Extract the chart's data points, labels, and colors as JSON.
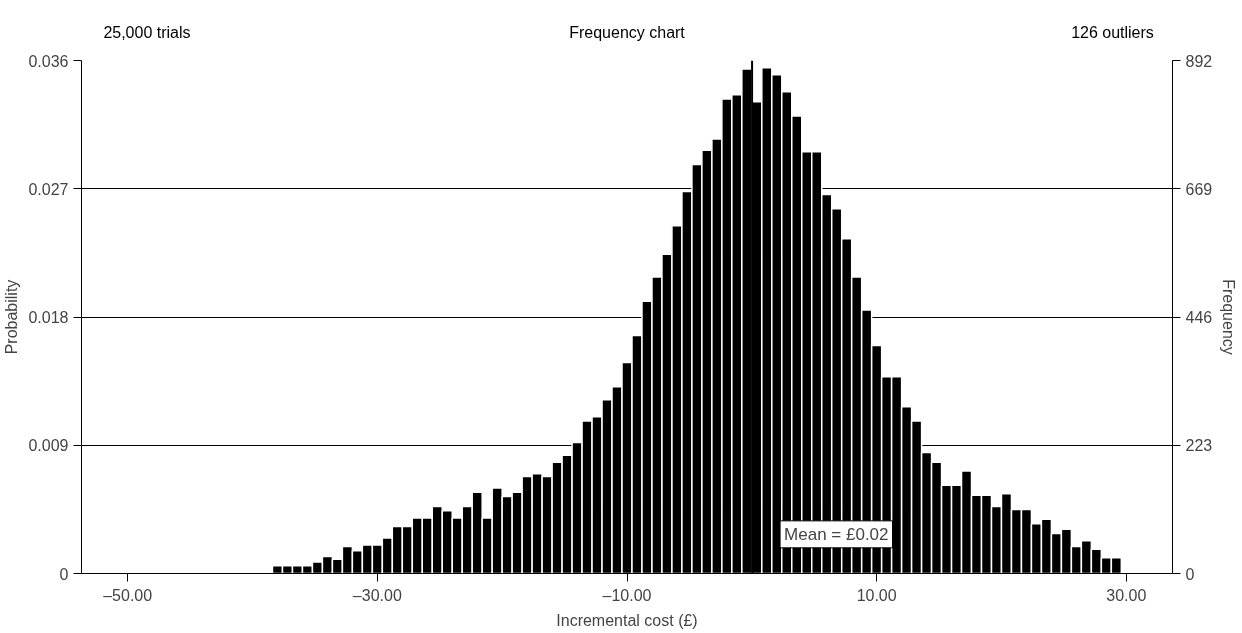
{
  "chart_data": {
    "type": "histogram",
    "title": "Frequency chart",
    "xlabel": "Incremental cost (£)",
    "ylabel": "Probability",
    "y2label": "Frequency",
    "annotations": [
      "25,000 trials",
      "126 outliers"
    ],
    "bins": [
      -38.4,
      -37.6,
      -36.8,
      -36,
      -35.2,
      -34.4,
      -33.6,
      -32.8,
      -32,
      -31.2,
      -30.4,
      -29.6,
      -28.8,
      -28,
      -27.2,
      -26.4,
      -25.6,
      -24.8,
      -24,
      -23.2,
      -22.4,
      -21.6,
      -20.8,
      -20,
      -19.2,
      -18.4,
      -17.6,
      -16.8,
      -16,
      -15.2,
      -14.4,
      -13.6,
      -12.8,
      -12,
      -11.2,
      -10.4,
      -9.6,
      -8.8,
      -8,
      -7.2,
      -6.4,
      -5.6,
      -4.8,
      -4,
      -3.2,
      -2.4,
      -1.6,
      -0.8,
      0,
      0.8,
      1.6,
      2.4,
      3.2,
      4,
      4.8,
      5.6,
      6.4,
      7.2,
      8,
      8.8,
      9.6,
      10.4,
      11.2,
      12,
      12.8,
      13.6,
      14.4,
      15.2,
      16,
      16.8,
      17.6,
      18.4,
      19.2,
      20,
      20.8,
      21.6,
      22.4,
      23.2,
      24,
      24.8,
      25.6,
      26.4,
      27.2,
      28,
      28.8,
      29.6
    ],
    "values": [
      0.00055,
      0.00055,
      0.00055,
      0.00055,
      0.0008,
      0.0012,
      0.001,
      0.0019,
      0.0016,
      0.002,
      0.002,
      0.0025,
      0.0033,
      0.0033,
      0.0039,
      0.0039,
      0.0047,
      0.0044,
      0.0039,
      0.0047,
      0.0057,
      0.0039,
      0.006,
      0.0054,
      0.0057,
      0.0068,
      0.007,
      0.0068,
      0.0078,
      0.0083,
      0.0092,
      0.0107,
      0.011,
      0.0122,
      0.0131,
      0.0148,
      0.0167,
      0.0191,
      0.0208,
      0.0224,
      0.0244,
      0.0268,
      0.0287,
      0.0297,
      0.0305,
      0.0333,
      0.0336,
      0.0354,
      0.0331,
      0.0355,
      0.035,
      0.0338,
      0.0321,
      0.0296,
      0.0296,
      0.0266,
      0.0256,
      0.0235,
      0.0208,
      0.0185,
      0.016,
      0.0138,
      0.0138,
      0.0117,
      0.0107,
      0.0085,
      0.0078,
      0.0062,
      0.0062,
      0.0072,
      0.0055,
      0.0055,
      0.0047,
      0.0056,
      0.0045,
      0.0045,
      0.0035,
      0.0038,
      0.0028,
      0.0031,
      0.0019,
      0.0023,
      0.0017,
      0.0011,
      0.0011
    ],
    "color": "#000000",
    "xlim": [
      -53.7,
      33.7
    ],
    "xticks": [
      {
        "value": -50,
        "label": "–50.00"
      },
      {
        "value": -30,
        "label": "–30.00"
      },
      {
        "value": -10,
        "label": "–10.00"
      },
      {
        "value": 10,
        "label": "10.00"
      },
      {
        "value": 30,
        "label": "30.00"
      }
    ],
    "ylim": [
      0,
      0.036
    ],
    "yticks": [
      0,
      0.009,
      0.018,
      0.027,
      0.036
    ],
    "y2lim": [
      0,
      892
    ],
    "y2ticks": [
      0,
      223,
      446,
      669,
      892
    ],
    "grid": "y",
    "ref_lines": [
      {
        "axis": "x",
        "value": 0.02,
        "label": "Mean = £0.02",
        "color": "#000000"
      }
    ]
  }
}
